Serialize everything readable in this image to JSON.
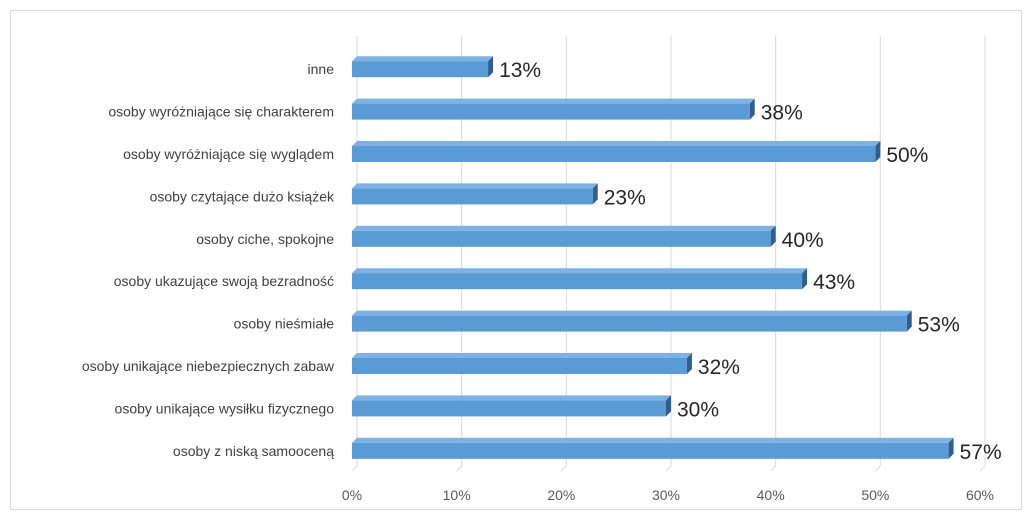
{
  "chart_data": {
    "type": "bar",
    "orientation": "horizontal",
    "categories": [
      "inne",
      "osoby wyróżniające się charakterem",
      "osoby wyróżniające się wyglądem",
      "osoby czytające dużo książek",
      "osoby ciche, spokojne",
      "osoby ukazujące swoją bezradność",
      "osoby nieśmiałe",
      "osoby unikające niebezpiecznych zabaw",
      "osoby unikające wysiłku fizycznego",
      "osoby z niską samooceną"
    ],
    "values": [
      13,
      38,
      50,
      23,
      40,
      43,
      53,
      32,
      30,
      57
    ],
    "data_labels": [
      "13%",
      "38%",
      "50%",
      "23%",
      "40%",
      "43%",
      "53%",
      "32%",
      "30%",
      "57%"
    ],
    "xlim": [
      0,
      60
    ],
    "x_ticks": [
      0,
      10,
      20,
      30,
      40,
      50,
      60
    ],
    "x_tick_labels": [
      "0%",
      "10%",
      "20%",
      "30%",
      "40%",
      "50%",
      "60%"
    ],
    "grid": true,
    "legend": "none",
    "bar_style": "3d",
    "colors": {
      "bar_front": "#5b9bd5",
      "bar_top": "#7eb2e2",
      "bar_side": "#2e5f8f",
      "gridline": "#d9d9d9"
    }
  }
}
